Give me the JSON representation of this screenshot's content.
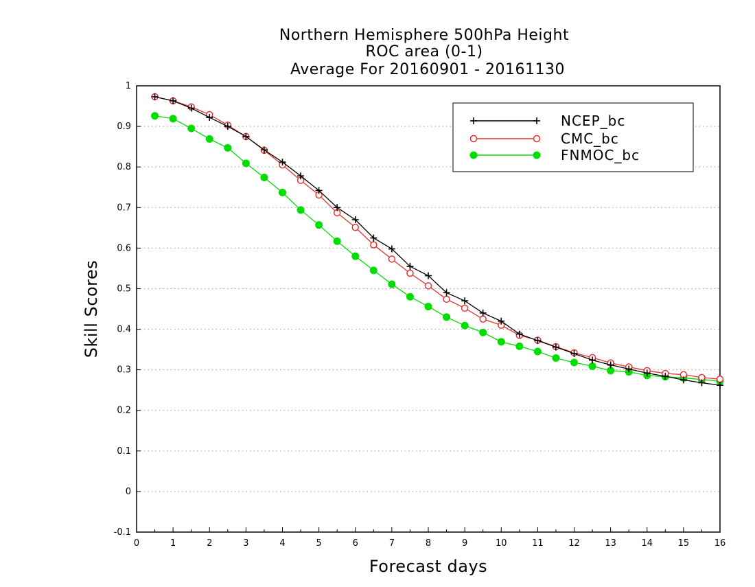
{
  "chart_data": {
    "type": "line",
    "title_lines": [
      "Northern Hemisphere 500hPa Height",
      "ROC area (0-1)",
      "Average For 20160901 - 20161130"
    ],
    "xlabel": "Forecast days",
    "ylabel": "Skill Scores",
    "xlim": [
      0,
      16
    ],
    "ylim": [
      -0.1,
      1
    ],
    "x_ticks": [
      "0",
      "1",
      "2",
      "3",
      "4",
      "5",
      "6",
      "7",
      "8",
      "9",
      "10",
      "11",
      "12",
      "13",
      "14",
      "15",
      "16"
    ],
    "y_ticks": [
      "1",
      "0.9",
      "0.8",
      "0.7",
      "0.6",
      "0.5",
      "0.4",
      "0.3",
      "0.2",
      "0.1",
      "0",
      "-0.1"
    ],
    "grid": "horizontal dotted",
    "legend_position": "top-right",
    "x": [
      0.5,
      1,
      1.5,
      2,
      2.5,
      3,
      3.5,
      4,
      4.5,
      5,
      5.5,
      6,
      6.5,
      7,
      7.5,
      8,
      8.5,
      9,
      9.5,
      10,
      10.5,
      11,
      11.5,
      12,
      12.5,
      13,
      13.5,
      14,
      14.5,
      15,
      15.5,
      16
    ],
    "series": [
      {
        "name": "NCEP_bc",
        "color": "#000000",
        "marker": "plus",
        "values": [
          0.973,
          0.963,
          0.945,
          0.922,
          0.9,
          0.875,
          0.842,
          0.812,
          0.778,
          0.742,
          0.7,
          0.67,
          0.625,
          0.598,
          0.555,
          0.532,
          0.49,
          0.47,
          0.44,
          0.42,
          0.388,
          0.372,
          0.356,
          0.34,
          0.324,
          0.312,
          0.302,
          0.292,
          0.284,
          0.275,
          0.268,
          0.262
        ]
      },
      {
        "name": "CMC_bc",
        "color": "#e83030",
        "marker": "open-circle",
        "values": [
          0.973,
          0.963,
          0.948,
          0.929,
          0.903,
          0.875,
          0.841,
          0.805,
          0.767,
          0.731,
          0.687,
          0.651,
          0.608,
          0.573,
          0.538,
          0.507,
          0.474,
          0.452,
          0.425,
          0.41,
          0.385,
          0.373,
          0.357,
          0.342,
          0.33,
          0.317,
          0.307,
          0.298,
          0.291,
          0.288,
          0.281,
          0.277
        ]
      },
      {
        "name": "FNMOC_bc",
        "color": "#00dd00",
        "marker": "filled-circle",
        "values": [
          0.926,
          0.919,
          0.895,
          0.869,
          0.847,
          0.809,
          0.774,
          0.737,
          0.694,
          0.657,
          0.617,
          0.58,
          0.545,
          0.511,
          0.48,
          0.456,
          0.43,
          0.409,
          0.392,
          0.369,
          0.358,
          0.345,
          0.329,
          0.318,
          0.309,
          0.298,
          0.295,
          0.286,
          0.283,
          0.28,
          0.276,
          0.272
        ]
      }
    ]
  }
}
